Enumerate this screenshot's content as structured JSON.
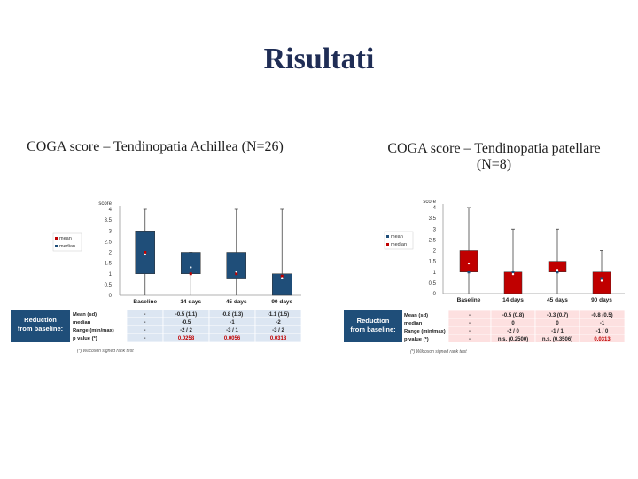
{
  "title": "Risultati",
  "panels": [
    {
      "subtitle": "COGA score – Tendinopatia Achillea (N=26)",
      "footnote": "(*) Wilcoxon signed rank test",
      "colors": {
        "box": "#1f4e79",
        "ref": "#c00000"
      },
      "legend": [
        "mean",
        "median"
      ]
    },
    {
      "subtitle": "COGA score – Tendinopatia patellare (N=8)",
      "footnote": "(*) Wilcoxon signed rank test",
      "colors": {
        "box": "#c00000",
        "ref": "#1f4e79"
      },
      "legend": [
        "mean",
        "median"
      ]
    }
  ],
  "chart_data": [
    {
      "type": "bar",
      "title": "",
      "ylabel": "score",
      "categories": [
        "Baseline",
        "14 days",
        "45 days",
        "90 days"
      ],
      "ylim": [
        0,
        4
      ],
      "yticks": [
        "0",
        "0.5",
        "1",
        "1.5",
        "2",
        "2.5",
        "3",
        "3.5",
        "4"
      ],
      "boxes": [
        {
          "low": 1,
          "high": 3,
          "whisker_min": 0,
          "whisker_max": 4,
          "mean": 1.9,
          "median": 2
        },
        {
          "low": 1,
          "high": 2,
          "whisker_min": 0,
          "whisker_max": 2,
          "mean": 1.3,
          "median": 1
        },
        {
          "low": 0.8,
          "high": 2,
          "whisker_min": 0,
          "whisker_max": 4,
          "mean": 1.1,
          "median": 1
        },
        {
          "low": 0,
          "high": 1,
          "whisker_min": 0,
          "whisker_max": 4,
          "mean": 0.8,
          "median": 0.9
        }
      ],
      "table": {
        "header_label": "Reduction from baseline:",
        "row_labels": [
          "Mean (sd)",
          "median",
          "Range (min/max)",
          "p value (*)"
        ],
        "rows": [
          [
            "-",
            "-0.5 (1.1)",
            "-0.8 (1.3)",
            "-1.1 (1.5)"
          ],
          [
            "-",
            "-0.5",
            "-1",
            "-2"
          ],
          [
            "-",
            "-2 / 2",
            "-3 / 1",
            "-3 / 2"
          ],
          [
            "-",
            "0.0258",
            "0.0056",
            "0.0318"
          ]
        ]
      }
    },
    {
      "type": "bar",
      "title": "",
      "ylabel": "score",
      "categories": [
        "Baseline",
        "14 days",
        "45 days",
        "90 days"
      ],
      "ylim": [
        0,
        4
      ],
      "yticks": [
        "0",
        "0.5",
        "1",
        "1.5",
        "2",
        "2.5",
        "3",
        "3.5",
        "4"
      ],
      "boxes": [
        {
          "low": 1,
          "high": 2,
          "whisker_min": 0,
          "whisker_max": 4,
          "mean": 1.4,
          "median": 1
        },
        {
          "low": 0,
          "high": 1,
          "whisker_min": 0,
          "whisker_max": 3,
          "mean": 0.9,
          "median": 1
        },
        {
          "low": 1,
          "high": 1.5,
          "whisker_min": 0,
          "whisker_max": 3,
          "mean": 1.1,
          "median": 1
        },
        {
          "low": 0,
          "high": 1,
          "whisker_min": 0,
          "whisker_max": 2,
          "mean": 0.6,
          "median": 0.7
        }
      ],
      "table": {
        "header_label": "Reduction from baseline:",
        "row_labels": [
          "Mean (sd)",
          "median",
          "Range (min/max)",
          "p value (*)"
        ],
        "rows": [
          [
            "-",
            "-0.5 (0.8)",
            "-0.3 (0.7)",
            "-0.8 (0.5)"
          ],
          [
            "-",
            "0",
            "0",
            "-1"
          ],
          [
            "-",
            "-2 / 0",
            "-1 / 1",
            "-1 / 0"
          ],
          [
            "-",
            "n.s. (0.2500)",
            "n.s. (0.3506)",
            "0.0313"
          ]
        ]
      }
    }
  ]
}
